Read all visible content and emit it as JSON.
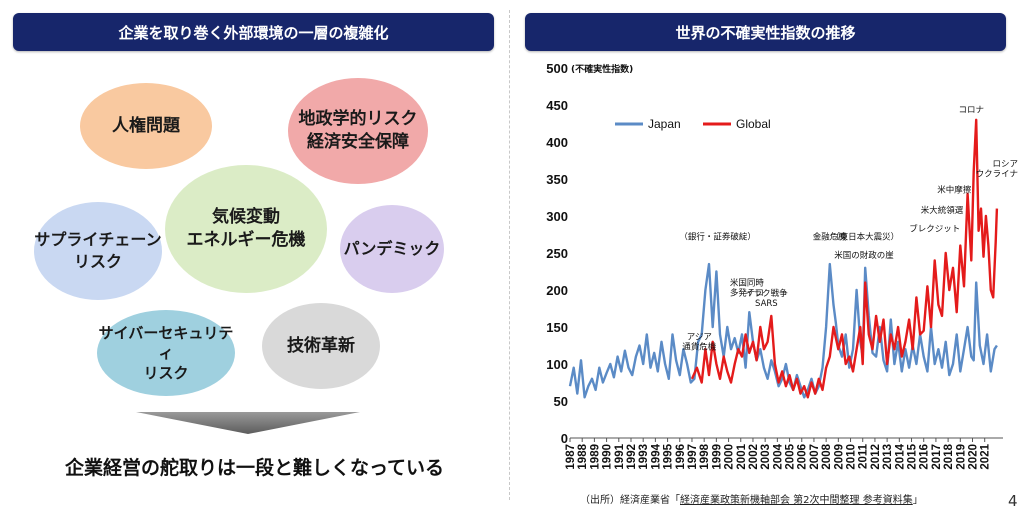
{
  "left_panel": {
    "header": "企業を取り巻く外部環境の一層の複雑化",
    "bubbles": [
      {
        "text": "人権問題",
        "color": "#f9c9a0"
      },
      {
        "text": "地政学的リスク\n経済安全保障",
        "color": "#f1a9a9"
      },
      {
        "text": "気候変動\nエネルギー危機",
        "color": "#dbecc6"
      },
      {
        "text": "サプライチェーン\nリスク",
        "color": "#c9d8f2"
      },
      {
        "text": "パンデミック",
        "color": "#d9cdee"
      },
      {
        "text": "サイバーセキュリティ\nリスク",
        "color": "#9fd0df"
      },
      {
        "text": "技術革新",
        "color": "#d9d9d9"
      }
    ],
    "conclusion": "企業経営の舵取りは一段と難しくなっている"
  },
  "right_panel": {
    "header": "世界の不確実性指数の推移",
    "source_prefix": "（出所）経済産業省「",
    "source_link": "経済産業政策新機軸部会 第2次中間整理 参考資料集",
    "source_suffix": "」"
  },
  "page_number": "4",
  "chart_data": {
    "type": "line",
    "ylabel": "(不確実性指数)",
    "ylim": [
      0,
      500
    ],
    "yticks": [
      0,
      50,
      100,
      150,
      200,
      250,
      300,
      350,
      400,
      450,
      500
    ],
    "xlim": [
      1987,
      2022.5
    ],
    "xticks": [
      "1987",
      "1988",
      "1989",
      "1990",
      "1991",
      "1992",
      "1993",
      "1994",
      "1995",
      "1996",
      "1997",
      "1998",
      "1999",
      "2000",
      "2001",
      "2002",
      "2003",
      "2004",
      "2005",
      "2006",
      "2007",
      "2008",
      "2009",
      "2010",
      "2011",
      "2012",
      "2013",
      "2014",
      "2015",
      "2016",
      "2017",
      "2018",
      "2019",
      "2020",
      "2021"
    ],
    "legend_position": "top-left",
    "grid": false,
    "series": [
      {
        "name": "Japan",
        "color": "#5b8bc6",
        "x": [
          1987.0,
          1987.3,
          1987.6,
          1987.9,
          1988.2,
          1988.5,
          1988.8,
          1989.1,
          1989.4,
          1989.7,
          1990.0,
          1990.3,
          1990.6,
          1990.9,
          1991.2,
          1991.5,
          1991.8,
          1992.1,
          1992.4,
          1992.7,
          1993.0,
          1993.3,
          1993.6,
          1993.9,
          1994.2,
          1994.5,
          1994.8,
          1995.1,
          1995.4,
          1995.7,
          1996.0,
          1996.3,
          1996.6,
          1996.9,
          1997.2,
          1997.5,
          1997.8,
          1998.1,
          1998.4,
          1998.7,
          1999.0,
          1999.3,
          1999.6,
          1999.9,
          2000.2,
          2000.5,
          2000.8,
          2001.1,
          2001.4,
          2001.7,
          2002.0,
          2002.3,
          2002.6,
          2002.9,
          2003.2,
          2003.5,
          2003.8,
          2004.1,
          2004.4,
          2004.7,
          2005.0,
          2005.3,
          2005.6,
          2005.9,
          2006.2,
          2006.5,
          2006.8,
          2007.1,
          2007.4,
          2007.7,
          2008.0,
          2008.3,
          2008.6,
          2008.8,
          2009.0,
          2009.3,
          2009.6,
          2009.9,
          2010.2,
          2010.5,
          2010.8,
          2011.0,
          2011.2,
          2011.5,
          2011.8,
          2012.1,
          2012.4,
          2012.7,
          2013.0,
          2013.3,
          2013.6,
          2013.9,
          2014.2,
          2014.5,
          2014.8,
          2015.1,
          2015.4,
          2015.7,
          2016.0,
          2016.3,
          2016.6,
          2016.9,
          2017.2,
          2017.5,
          2017.8,
          2018.1,
          2018.4,
          2018.7,
          2019.0,
          2019.3,
          2019.6,
          2019.9,
          2020.1,
          2020.3,
          2020.6,
          2020.9,
          2021.2,
          2021.5,
          2021.8,
          2022.0
        ],
        "values": [
          70,
          95,
          60,
          105,
          55,
          70,
          80,
          65,
          95,
          75,
          88,
          100,
          82,
          110,
          90,
          118,
          95,
          85,
          110,
          125,
          100,
          140,
          95,
          115,
          90,
          130,
          100,
          80,
          140,
          105,
          85,
          120,
          100,
          75,
          80,
          130,
          140,
          200,
          235,
          150,
          225,
          140,
          110,
          150,
          120,
          135,
          115,
          140,
          95,
          170,
          130,
          105,
          120,
          95,
          80,
          105,
          90,
          70,
          80,
          100,
          75,
          65,
          85,
          70,
          55,
          65,
          80,
          60,
          70,
          95,
          150,
          235,
          180,
          155,
          125,
          110,
          140,
          95,
          120,
          200,
          130,
          110,
          230,
          165,
          115,
          110,
          150,
          105,
          90,
          160,
          100,
          130,
          90,
          120,
          95,
          125,
          100,
          140,
          110,
          90,
          150,
          100,
          120,
          95,
          130,
          85,
          100,
          140,
          90,
          120,
          150,
          110,
          105,
          210,
          125,
          100,
          140,
          90,
          120,
          125
        ]
      },
      {
        "name": "Global",
        "color": "#e41b1b",
        "x": [
          1997.0,
          1997.4,
          1997.8,
          1998.1,
          1998.4,
          1998.7,
          1999.0,
          1999.3,
          1999.6,
          1999.9,
          2000.2,
          2000.5,
          2000.8,
          2001.1,
          2001.4,
          2001.7,
          2002.0,
          2002.3,
          2002.6,
          2002.9,
          2003.2,
          2003.5,
          2003.8,
          2004.1,
          2004.4,
          2004.7,
          2005.0,
          2005.3,
          2005.6,
          2005.9,
          2006.2,
          2006.5,
          2006.8,
          2007.1,
          2007.4,
          2007.7,
          2008.0,
          2008.3,
          2008.6,
          2008.8,
          2009.0,
          2009.3,
          2009.6,
          2009.9,
          2010.2,
          2010.5,
          2010.8,
          2011.0,
          2011.2,
          2011.5,
          2011.8,
          2012.1,
          2012.4,
          2012.7,
          2013.0,
          2013.3,
          2013.6,
          2013.9,
          2014.2,
          2014.5,
          2014.8,
          2015.1,
          2015.4,
          2015.7,
          2016.0,
          2016.3,
          2016.6,
          2016.9,
          2017.2,
          2017.5,
          2017.8,
          2018.1,
          2018.4,
          2018.7,
          2019.0,
          2019.3,
          2019.6,
          2019.9,
          2020.1,
          2020.3,
          2020.5,
          2020.7,
          2020.9,
          2021.1,
          2021.3,
          2021.5,
          2021.7,
          2021.9,
          2022.0
        ],
        "values": [
          80,
          95,
          75,
          120,
          85,
          130,
          100,
          80,
          110,
          90,
          75,
          100,
          120,
          110,
          140,
          115,
          130,
          105,
          150,
          120,
          130,
          165,
          100,
          75,
          90,
          70,
          85,
          65,
          80,
          60,
          70,
          55,
          75,
          60,
          80,
          65,
          95,
          110,
          150,
          135,
          120,
          140,
          100,
          110,
          90,
          120,
          150,
          100,
          210,
          140,
          120,
          165,
          130,
          160,
          100,
          140,
          120,
          150,
          110,
          130,
          160,
          120,
          190,
          140,
          145,
          205,
          150,
          240,
          180,
          165,
          250,
          200,
          230,
          170,
          260,
          205,
          330,
          240,
          360,
          430,
          280,
          310,
          245,
          300,
          260,
          200,
          190,
          265,
          310
        ]
      }
    ],
    "annotations": [
      {
        "text": "アジア\n通貨危機",
        "x": 1997.6,
        "y": 133
      },
      {
        "text": "（銀行・証券破綻）",
        "x": 1999.1,
        "y": 268
      },
      {
        "text": "米国同時\n多発テロ",
        "x": 2001.5,
        "y": 206
      },
      {
        "text": "イラク戦争\nSARS",
        "x": 2003.1,
        "y": 192
      },
      {
        "text": "金融危機",
        "x": 2008.3,
        "y": 268
      },
      {
        "text": "（東日本大震災）",
        "x": 2011.2,
        "y": 268
      },
      {
        "text": "米国の財政の崖",
        "x": 2011.1,
        "y": 243
      },
      {
        "text": "ブレクジット",
        "x": 2016.9,
        "y": 279
      },
      {
        "text": "米大統領選",
        "x": 2017.5,
        "y": 304
      },
      {
        "text": "米中摩擦",
        "x": 2018.5,
        "y": 332
      },
      {
        "text": "コロナ",
        "x": 2019.9,
        "y": 440
      },
      {
        "text": "ロシア\nウクライナ",
        "x": 2022.0,
        "y": 367
      }
    ]
  }
}
